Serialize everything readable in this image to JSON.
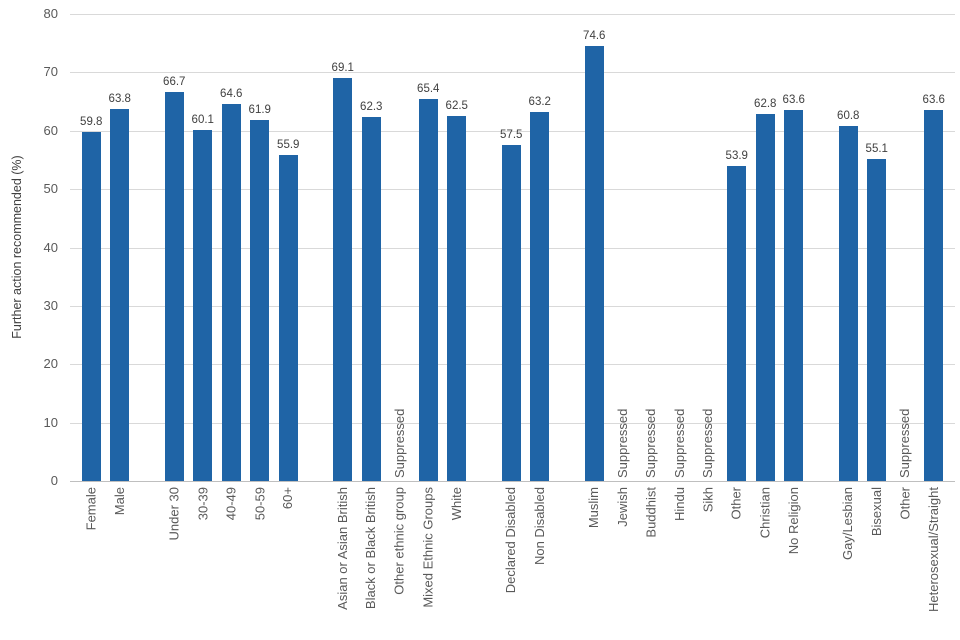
{
  "chart_data": {
    "type": "bar",
    "title": "",
    "xlabel": "",
    "ylabel": "Further action recommended (%)",
    "ylim": [
      0,
      80
    ],
    "ytick_step": 10,
    "grid": "horizontal-major",
    "legend": "none",
    "bar_color": "#1F64A6",
    "suppressed_label": "Suppressed",
    "groups": [
      {
        "name": "gender",
        "categories": [
          "Female",
          "Male"
        ],
        "values": [
          59.8,
          63.8
        ]
      },
      {
        "name": "age",
        "categories": [
          "Under 30",
          "30-39",
          "40-49",
          "50-59",
          "60+"
        ],
        "values": [
          66.7,
          60.1,
          64.6,
          61.9,
          55.9
        ]
      },
      {
        "name": "ethnicity",
        "categories": [
          "Asian or Asian British",
          "Black or Black British",
          "Other ethnic group",
          "Mixed Ethnic Groups",
          "White"
        ],
        "values": [
          69.1,
          62.3,
          "Suppressed",
          65.4,
          62.5
        ]
      },
      {
        "name": "disability",
        "categories": [
          "Declared Disabled",
          "Non Disabled"
        ],
        "values": [
          57.5,
          63.2
        ]
      },
      {
        "name": "religion",
        "categories": [
          "Muslim",
          "Jewish",
          "Buddhist",
          "Hindu",
          "Sikh",
          "Other",
          "Christian",
          "No Religion"
        ],
        "values": [
          74.6,
          "Suppressed",
          "Suppressed",
          "Suppressed",
          "Suppressed",
          53.9,
          62.8,
          63.6
        ]
      },
      {
        "name": "sexual-orientation",
        "categories": [
          "Gay/Lesbian",
          "Bisexual",
          "Other",
          "Heterosexual/Straight"
        ],
        "values": [
          60.8,
          55.1,
          "Suppressed",
          63.6
        ]
      }
    ]
  }
}
